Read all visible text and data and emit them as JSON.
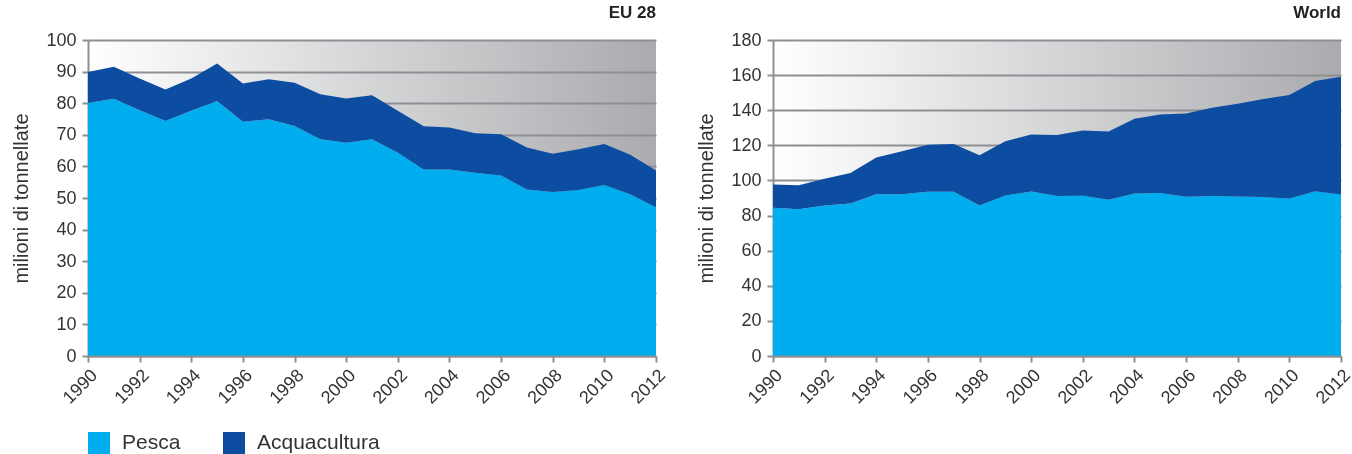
{
  "chart_data": [
    {
      "type": "area",
      "stacked": true,
      "title": "EU 28",
      "ylabel": "milioni di tonnellate",
      "legend": "bottom",
      "grid": "y",
      "x": [
        1990,
        1991,
        1992,
        1993,
        1994,
        1995,
        1996,
        1997,
        1998,
        1999,
        2000,
        2001,
        2002,
        2003,
        2004,
        2005,
        2006,
        2007,
        2008,
        2009,
        2010,
        2011,
        2012
      ],
      "xlim": [
        1990,
        2012
      ],
      "xticks": [
        1990,
        1992,
        1994,
        1996,
        1998,
        2000,
        2002,
        2004,
        2006,
        2008,
        2010,
        2012
      ],
      "ylim": [
        0,
        100
      ],
      "yticks": [
        0,
        10,
        20,
        30,
        40,
        50,
        60,
        70,
        80,
        90,
        100
      ],
      "series": [
        {
          "name": "Pesca",
          "color": "#00adee",
          "values": [
            80.1,
            81.4,
            77.8,
            74.4,
            77.6,
            80.7,
            74.1,
            74.9,
            72.8,
            68.6,
            67.5,
            68.6,
            64.3,
            59.0,
            59.0,
            58.0,
            57.1,
            52.7,
            51.9,
            52.5,
            54.1,
            51.2,
            47.1
          ]
        },
        {
          "name": "Acquacultura",
          "color": "#0c4da2",
          "values": [
            9.8,
            10.1,
            10.0,
            9.9,
            10.2,
            11.9,
            12.1,
            12.7,
            13.7,
            14.2,
            14.0,
            13.9,
            13.3,
            13.7,
            13.3,
            12.5,
            13.1,
            13.3,
            12.1,
            12.9,
            13.0,
            12.5,
            11.6
          ]
        }
      ]
    },
    {
      "type": "area",
      "stacked": true,
      "title": "World",
      "ylabel": "milioni di tonnellate",
      "grid": "y",
      "x": [
        1990,
        1991,
        1992,
        1993,
        1994,
        1995,
        1996,
        1997,
        1998,
        1999,
        2000,
        2001,
        2002,
        2003,
        2004,
        2005,
        2006,
        2007,
        2008,
        2009,
        2010,
        2011,
        2012
      ],
      "xlim": [
        1990,
        2012
      ],
      "xticks": [
        1990,
        1992,
        1994,
        1996,
        1998,
        2000,
        2002,
        2004,
        2006,
        2008,
        2010,
        2012
      ],
      "ylim": [
        0,
        180
      ],
      "yticks": [
        0,
        20,
        40,
        60,
        80,
        100,
        120,
        140,
        160,
        180
      ],
      "series": [
        {
          "name": "Pesca",
          "color": "#00adee",
          "values": [
            84.4,
            83.6,
            85.7,
            86.9,
            92.2,
            92.2,
            93.5,
            93.5,
            85.7,
            91.4,
            93.7,
            91.1,
            91.3,
            89.0,
            92.6,
            92.8,
            90.7,
            91.1,
            90.9,
            90.5,
            89.7,
            93.9,
            92.0
          ]
        },
        {
          "name": "Acquacultura",
          "color": "#0c4da2",
          "values": [
            13.3,
            13.7,
            15.2,
            17.4,
            20.8,
            24.5,
            26.9,
            27.3,
            28.7,
            30.9,
            32.5,
            34.8,
            37.2,
            38.9,
            42.6,
            44.7,
            47.5,
            50.3,
            52.8,
            55.9,
            59.0,
            62.8,
            67.1
          ]
        }
      ]
    }
  ]
}
